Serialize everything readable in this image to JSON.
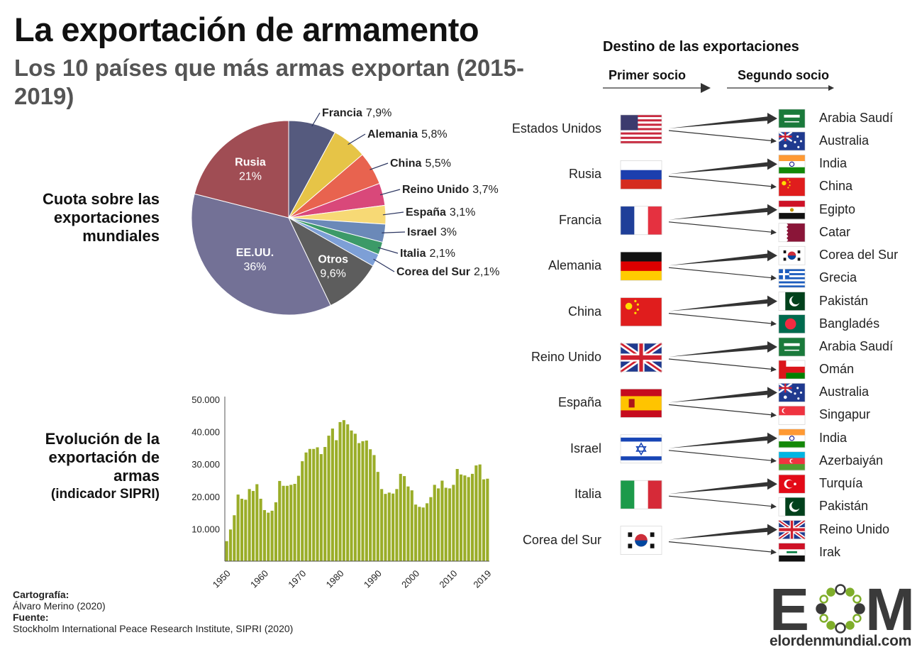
{
  "title": "La exportación de armamento",
  "subtitle": "Los 10 países que más armas exportan (2015-2019)",
  "pie_section_label": "Cuota sobre las exportaciones mundiales",
  "bar_section_label": "Evolución de la exportación de armas",
  "bar_section_sublabel": "(indicador SIPRI)",
  "destinations": {
    "title": "Destino de las exportaciones",
    "first_label": "Primer socio",
    "second_label": "Segundo socio",
    "rows": [
      {
        "exporter": "Estados Unidos",
        "first": "Arabia Saudí",
        "second": "Australia"
      },
      {
        "exporter": "Rusia",
        "first": "India",
        "second": "China"
      },
      {
        "exporter": "Francia",
        "first": "Egipto",
        "second": "Catar"
      },
      {
        "exporter": "Alemania",
        "first": "Corea del Sur",
        "second": "Grecia"
      },
      {
        "exporter": "China",
        "first": "Pakistán",
        "second": "Bangladés"
      },
      {
        "exporter": "Reino Unido",
        "first": "Arabia Saudí",
        "second": "Omán"
      },
      {
        "exporter": "España",
        "first": "Australia",
        "second": "Singapur"
      },
      {
        "exporter": "Israel",
        "first": "India",
        "second": "Azerbaiyán"
      },
      {
        "exporter": "Italia",
        "first": "Turquía",
        "second": "Pakistán"
      },
      {
        "exporter": "Corea del Sur",
        "first": "Reino Unido",
        "second": "Irak"
      }
    ]
  },
  "credits": {
    "cartography_label": "Cartografía:",
    "cartography_value": "Álvaro Merino (2020)",
    "source_label": "Fuente:",
    "source_value": "Stockholm International Peace Research Institute, SIPRI (2020)"
  },
  "logo": {
    "letters": "EOM",
    "site": "elordenmundial.com"
  },
  "chart_data": [
    {
      "type": "pie",
      "slices": [
        {
          "label": "EE.UU.",
          "value": 36,
          "display": "36%",
          "color": "#737196"
        },
        {
          "label": "Rusia",
          "value": 21,
          "display": "21%",
          "color": "#a04d54"
        },
        {
          "label": "Francia",
          "value": 7.9,
          "display": "7,9%",
          "color": "#555a7e"
        },
        {
          "label": "Alemania",
          "value": 5.8,
          "display": "5,8%",
          "color": "#e6c447"
        },
        {
          "label": "China",
          "value": 5.5,
          "display": "5,5%",
          "color": "#e8634f"
        },
        {
          "label": "Reino Unido",
          "value": 3.7,
          "display": "3,7%",
          "color": "#d9487a"
        },
        {
          "label": "España",
          "value": 3.1,
          "display": "3,1%",
          "color": "#f7d975"
        },
        {
          "label": "Israel",
          "value": 3,
          "display": "3%",
          "color": "#6b89b8"
        },
        {
          "label": "Italia",
          "value": 2.1,
          "display": "2,1%",
          "color": "#3c9a68"
        },
        {
          "label": "Corea del Sur",
          "value": 2.1,
          "display": "2,1%",
          "color": "#7d9fd6"
        },
        {
          "label": "Otros",
          "value": 9.6,
          "display": "9,6%",
          "color": "#5d5d5d"
        }
      ]
    },
    {
      "type": "bar",
      "color": "#9aad28",
      "x_ticks": [
        "1950",
        "1960",
        "1970",
        "1980",
        "1990",
        "2000",
        "2010",
        "2019"
      ],
      "y_ticks": [
        "10.000",
        "20.000",
        "30.000",
        "40.000",
        "50.000"
      ],
      "ylim": [
        0,
        50000
      ],
      "years": [
        1950,
        1951,
        1952,
        1953,
        1954,
        1955,
        1956,
        1957,
        1958,
        1959,
        1960,
        1961,
        1962,
        1963,
        1964,
        1965,
        1966,
        1967,
        1968,
        1969,
        1970,
        1971,
        1972,
        1973,
        1974,
        1975,
        1976,
        1977,
        1978,
        1979,
        1980,
        1981,
        1982,
        1983,
        1984,
        1985,
        1986,
        1987,
        1988,
        1989,
        1990,
        1991,
        1992,
        1993,
        1994,
        1995,
        1996,
        1997,
        1998,
        1999,
        2000,
        2001,
        2002,
        2003,
        2004,
        2005,
        2006,
        2007,
        2008,
        2009,
        2010,
        2011,
        2012,
        2013,
        2014,
        2015,
        2016,
        2017,
        2018,
        2019
      ],
      "values": [
        6200,
        9800,
        14200,
        20600,
        19300,
        19000,
        22300,
        21700,
        23800,
        19300,
        15800,
        15000,
        15600,
        18200,
        24800,
        23300,
        23300,
        23600,
        23900,
        26400,
        30900,
        33600,
        34700,
        34700,
        35200,
        33100,
        35300,
        38800,
        41000,
        37400,
        43000,
        43600,
        42300,
        40400,
        39400,
        36500,
        37100,
        37300,
        34600,
        32800,
        27600,
        22300,
        20800,
        21200,
        20900,
        22300,
        27000,
        26300,
        23100,
        21900,
        17500,
        16800,
        16600,
        17900,
        19800,
        23600,
        22500,
        24900,
        22700,
        22500,
        23600,
        28500,
        26800,
        26500,
        26000,
        27000,
        29600,
        29900,
        25300,
        25500
      ]
    }
  ]
}
